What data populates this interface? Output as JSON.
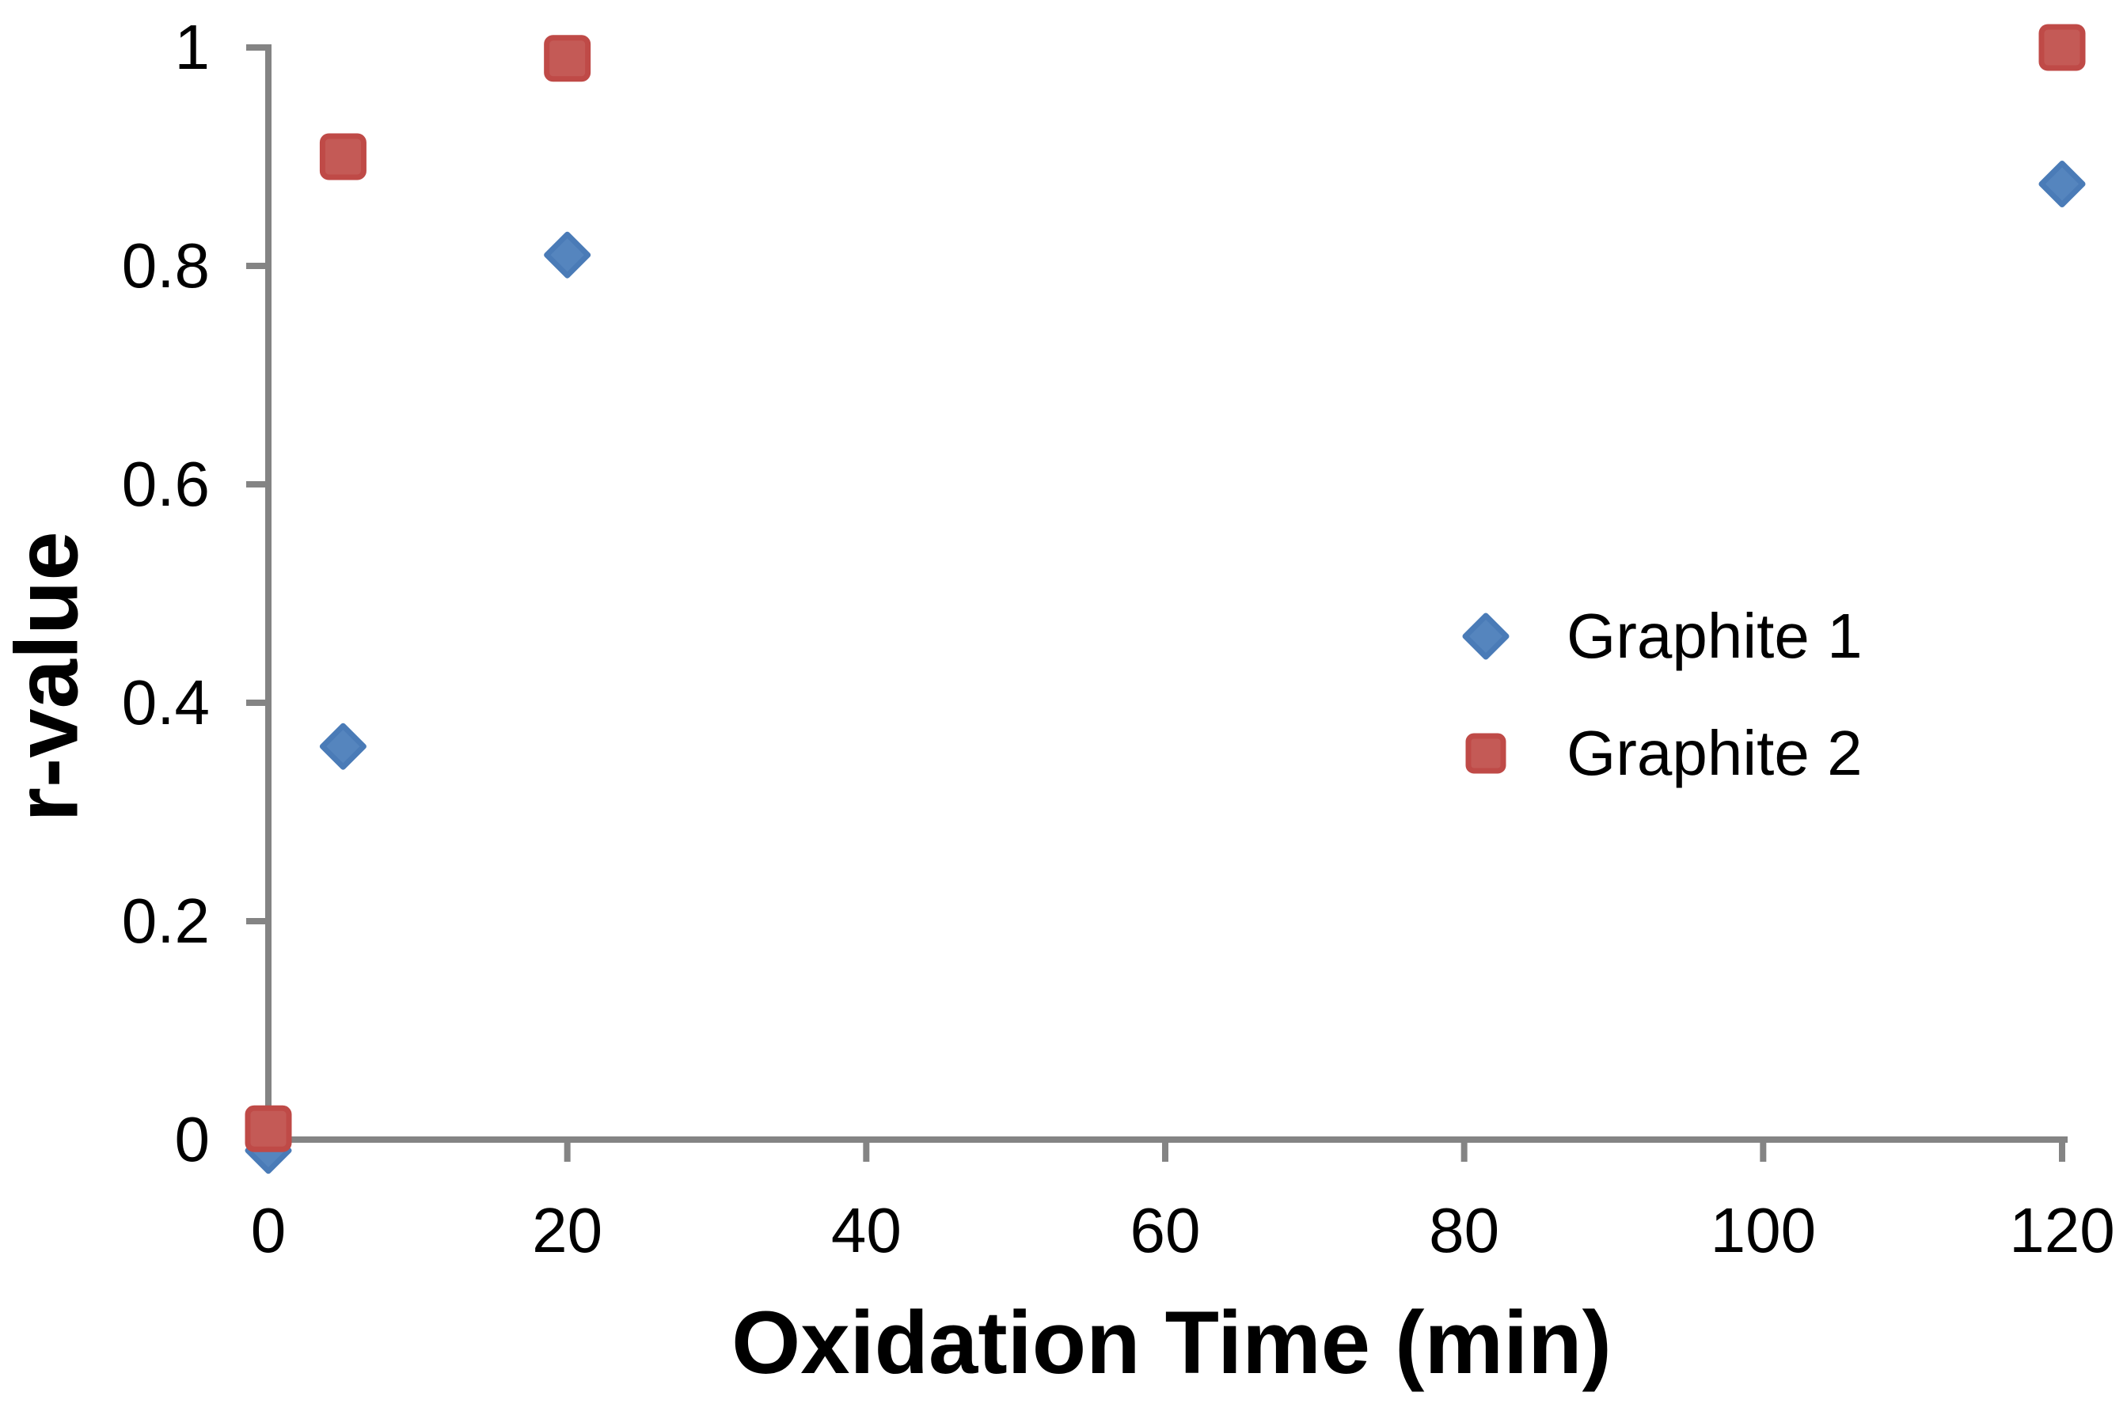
{
  "page": {
    "background": "#FFFFFF"
  },
  "chart_data": {
    "type": "scatter",
    "title": "",
    "xlabel": "Oxidation Time (min)",
    "ylabel": "r-value",
    "xlim": [
      0,
      120
    ],
    "ylim": [
      0,
      1
    ],
    "grid": false,
    "axis_color": "#848484",
    "text_color": "#000000",
    "legend_position": "center-right",
    "x_ticks": [
      {
        "value": 0,
        "label": "0"
      },
      {
        "value": 20,
        "label": "20"
      },
      {
        "value": 40,
        "label": "40"
      },
      {
        "value": 60,
        "label": "60"
      },
      {
        "value": 80,
        "label": "80"
      },
      {
        "value": 100,
        "label": "100"
      },
      {
        "value": 120,
        "label": "120"
      }
    ],
    "y_ticks": [
      {
        "value": 0,
        "label": "0"
      },
      {
        "value": 0.2,
        "label": "0.2"
      },
      {
        "value": 0.4,
        "label": "0.4"
      },
      {
        "value": 0.6,
        "label": "0.6"
      },
      {
        "value": 0.8,
        "label": "0.8"
      },
      {
        "value": 1,
        "label": "1"
      }
    ],
    "series": [
      {
        "name": "Graphite 1",
        "marker": "diamond",
        "color": "#4F81BD",
        "fill": "#5585BE",
        "edge": "#4A7BB7",
        "points": [
          {
            "x": 0,
            "y": -0.01
          },
          {
            "x": 5,
            "y": 0.36
          },
          {
            "x": 20,
            "y": 0.81
          },
          {
            "x": 120,
            "y": 0.875
          }
        ]
      },
      {
        "name": "Graphite 2",
        "marker": "square",
        "color": "#C0504D",
        "fill": "#C45A56",
        "edge": "#BF4A47",
        "points": [
          {
            "x": 0,
            "y": 0.01
          },
          {
            "x": 5,
            "y": 0.9
          },
          {
            "x": 20,
            "y": 0.99
          },
          {
            "x": 120,
            "y": 1.0
          }
        ]
      }
    ]
  }
}
